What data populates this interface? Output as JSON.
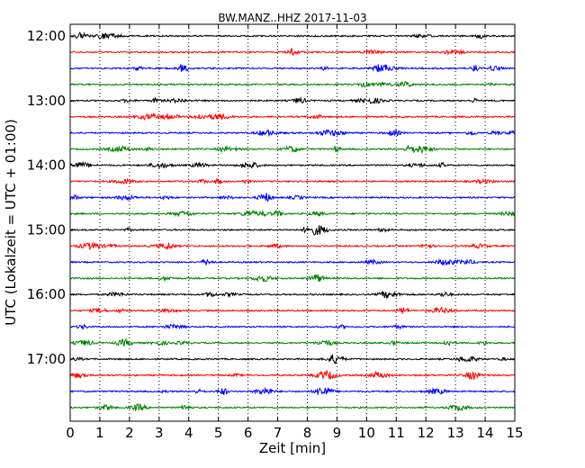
{
  "chart_data": {
    "type": "line",
    "title": "BW.MANZ..HHZ 2017-11-03",
    "xlabel": "Zeit  [min]",
    "ylabel": "UTC (Lokalzeit = UTC + 01:00)",
    "xlim": [
      0,
      15
    ],
    "x_ticks": [
      "0",
      "1",
      "2",
      "3",
      "4",
      "5",
      "6",
      "7",
      "8",
      "9",
      "10",
      "11",
      "12",
      "13",
      "14",
      "15"
    ],
    "y_ticks": [
      "12:00",
      "13:00",
      "14:00",
      "15:00",
      "16:00",
      "17:00"
    ],
    "grid": "vertical dotted at each minute",
    "trace_interval_minutes": 15,
    "trace_colors": [
      "#000000",
      "#ff0000",
      "#0000ff",
      "#008000"
    ],
    "series": [
      {
        "start": "12:00",
        "color": "#000000"
      },
      {
        "start": "12:15",
        "color": "#ff0000"
      },
      {
        "start": "12:30",
        "color": "#0000ff"
      },
      {
        "start": "12:45",
        "color": "#008000"
      },
      {
        "start": "13:00",
        "color": "#000000"
      },
      {
        "start": "13:15",
        "color": "#ff0000"
      },
      {
        "start": "13:30",
        "color": "#0000ff"
      },
      {
        "start": "13:45",
        "color": "#008000"
      },
      {
        "start": "14:00",
        "color": "#000000"
      },
      {
        "start": "14:15",
        "color": "#ff0000"
      },
      {
        "start": "14:30",
        "color": "#0000ff"
      },
      {
        "start": "14:45",
        "color": "#008000"
      },
      {
        "start": "15:00",
        "color": "#000000"
      },
      {
        "start": "15:15",
        "color": "#ff0000"
      },
      {
        "start": "15:30",
        "color": "#0000ff"
      },
      {
        "start": "15:45",
        "color": "#008000"
      },
      {
        "start": "16:00",
        "color": "#000000"
      },
      {
        "start": "16:15",
        "color": "#ff0000"
      },
      {
        "start": "16:30",
        "color": "#0000ff"
      },
      {
        "start": "16:45",
        "color": "#008000"
      },
      {
        "start": "17:00",
        "color": "#000000"
      },
      {
        "start": "17:15",
        "color": "#ff0000"
      },
      {
        "start": "17:30",
        "color": "#0000ff"
      },
      {
        "start": "17:45",
        "color": "#008000"
      }
    ]
  }
}
